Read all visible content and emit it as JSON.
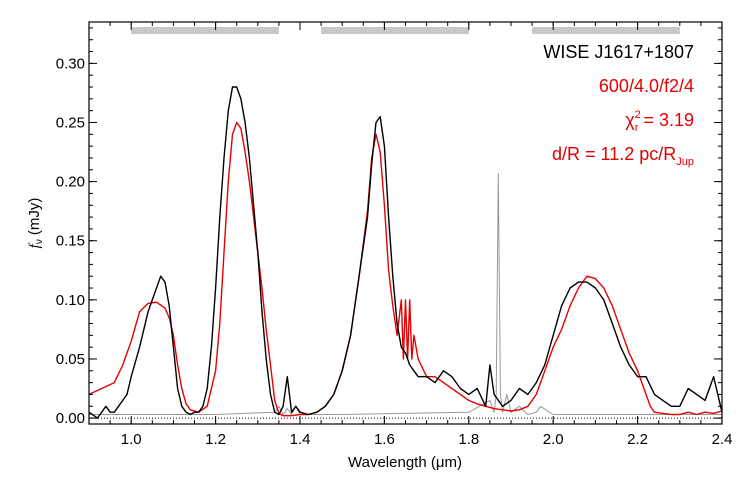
{
  "chart_data": {
    "type": "line",
    "xlabel_prefix": "Wavelength (",
    "xlabel_unit": "μm",
    "xlabel_suffix": ")",
    "ylabel_symbol": "f",
    "ylabel_sub": "ν",
    "ylabel_unit": "(mJy)",
    "xlim": [
      0.9,
      2.4
    ],
    "ylim": [
      -0.005,
      0.335
    ],
    "x_ticks": [
      "1.0",
      "1.2",
      "1.4",
      "1.6",
      "1.8",
      "2.0",
      "2.2",
      "2.4"
    ],
    "y_ticks": [
      "0.00",
      "0.05",
      "0.10",
      "0.15",
      "0.20",
      "0.25",
      "0.30"
    ],
    "annotations": {
      "object": "WISE J1617+1807",
      "model": "600/4.0/f2/4",
      "chi_symbol": "χ",
      "chi_sup": "2",
      "chi_sub": "r",
      "chi_value": " = 3.19",
      "dist_main": "d/R = 11.2 pc/R",
      "dist_sub": "Jup"
    },
    "colors": {
      "observed": "#000000",
      "model": "#e60000",
      "noise": "#999999",
      "bands": "#c8c8c8"
    },
    "band_bars": [
      [
        1.0,
        1.35
      ],
      [
        1.45,
        1.8
      ],
      [
        1.95,
        2.3
      ]
    ],
    "series": [
      {
        "role": "observed",
        "x": [
          0.9,
          0.92,
          0.94,
          0.95,
          0.96,
          0.97,
          0.98,
          0.99,
          1.0,
          1.02,
          1.04,
          1.06,
          1.07,
          1.08,
          1.09,
          1.1,
          1.11,
          1.12,
          1.13,
          1.14,
          1.15,
          1.16,
          1.17,
          1.18,
          1.19,
          1.2,
          1.21,
          1.22,
          1.23,
          1.24,
          1.25,
          1.26,
          1.27,
          1.28,
          1.29,
          1.3,
          1.31,
          1.32,
          1.33,
          1.34,
          1.35,
          1.36,
          1.37,
          1.38,
          1.39,
          1.4,
          1.42,
          1.44,
          1.46,
          1.48,
          1.5,
          1.52,
          1.54,
          1.56,
          1.57,
          1.58,
          1.59,
          1.6,
          1.61,
          1.62,
          1.63,
          1.64,
          1.65,
          1.66,
          1.67,
          1.68,
          1.7,
          1.72,
          1.74,
          1.76,
          1.78,
          1.8,
          1.82,
          1.84,
          1.85,
          1.86,
          1.88,
          1.9,
          1.92,
          1.94,
          1.96,
          1.98,
          2.0,
          2.02,
          2.04,
          2.06,
          2.08,
          2.1,
          2.12,
          2.14,
          2.16,
          2.18,
          2.2,
          2.22,
          2.24,
          2.26,
          2.28,
          2.3,
          2.32,
          2.34,
          2.36,
          2.38,
          2.4
        ],
        "y": [
          0.005,
          0.0,
          0.01,
          0.005,
          0.005,
          0.01,
          0.015,
          0.02,
          0.035,
          0.06,
          0.09,
          0.11,
          0.12,
          0.115,
          0.095,
          0.06,
          0.025,
          0.01,
          0.005,
          0.003,
          0.005,
          0.005,
          0.01,
          0.025,
          0.06,
          0.11,
          0.17,
          0.22,
          0.26,
          0.28,
          0.28,
          0.27,
          0.25,
          0.22,
          0.18,
          0.14,
          0.09,
          0.05,
          0.02,
          0.005,
          0.003,
          0.01,
          0.035,
          0.005,
          0.01,
          0.005,
          0.003,
          0.005,
          0.01,
          0.02,
          0.04,
          0.07,
          0.12,
          0.17,
          0.215,
          0.25,
          0.255,
          0.23,
          0.17,
          0.12,
          0.08,
          0.06,
          0.055,
          0.045,
          0.04,
          0.035,
          0.035,
          0.03,
          0.04,
          0.035,
          0.025,
          0.02,
          0.025,
          0.01,
          0.045,
          0.02,
          0.01,
          0.015,
          0.025,
          0.02,
          0.03,
          0.045,
          0.07,
          0.095,
          0.11,
          0.115,
          0.115,
          0.11,
          0.1,
          0.08,
          0.06,
          0.045,
          0.035,
          0.035,
          0.02,
          0.015,
          0.01,
          0.01,
          0.025,
          0.02,
          0.015,
          0.035,
          0.005
        ]
      },
      {
        "role": "model",
        "x": [
          0.9,
          0.93,
          0.96,
          0.98,
          1.0,
          1.02,
          1.04,
          1.06,
          1.08,
          1.09,
          1.1,
          1.11,
          1.12,
          1.13,
          1.14,
          1.16,
          1.18,
          1.2,
          1.21,
          1.22,
          1.23,
          1.24,
          1.25,
          1.26,
          1.27,
          1.28,
          1.29,
          1.3,
          1.31,
          1.32,
          1.33,
          1.34,
          1.35,
          1.36,
          1.38,
          1.4,
          1.42,
          1.44,
          1.46,
          1.48,
          1.5,
          1.52,
          1.54,
          1.56,
          1.57,
          1.58,
          1.59,
          1.6,
          1.61,
          1.62,
          1.63,
          1.64,
          1.645,
          1.65,
          1.655,
          1.66,
          1.665,
          1.67,
          1.68,
          1.7,
          1.72,
          1.74,
          1.76,
          1.78,
          1.8,
          1.82,
          1.84,
          1.86,
          1.88,
          1.9,
          1.92,
          1.94,
          1.96,
          1.98,
          2.0,
          2.02,
          2.04,
          2.06,
          2.08,
          2.1,
          2.12,
          2.14,
          2.16,
          2.18,
          2.2,
          2.21,
          2.22,
          2.23,
          2.24,
          2.26,
          2.28,
          2.3,
          2.32,
          2.34,
          2.36,
          2.38,
          2.4
        ],
        "y": [
          0.02,
          0.025,
          0.03,
          0.045,
          0.065,
          0.09,
          0.097,
          0.098,
          0.093,
          0.085,
          0.07,
          0.045,
          0.025,
          0.012,
          0.007,
          0.005,
          0.01,
          0.04,
          0.08,
          0.14,
          0.2,
          0.24,
          0.25,
          0.245,
          0.225,
          0.2,
          0.17,
          0.14,
          0.11,
          0.075,
          0.045,
          0.015,
          0.004,
          0.002,
          0.002,
          0.003,
          0.003,
          0.005,
          0.01,
          0.02,
          0.04,
          0.07,
          0.12,
          0.175,
          0.22,
          0.24,
          0.225,
          0.18,
          0.125,
          0.095,
          0.07,
          0.1,
          0.05,
          0.1,
          0.05,
          0.1,
          0.05,
          0.07,
          0.05,
          0.035,
          0.035,
          0.03,
          0.025,
          0.02,
          0.015,
          0.012,
          0.01,
          0.008,
          0.007,
          0.006,
          0.007,
          0.01,
          0.02,
          0.04,
          0.06,
          0.075,
          0.095,
          0.11,
          0.12,
          0.118,
          0.11,
          0.095,
          0.075,
          0.055,
          0.04,
          0.03,
          0.02,
          0.01,
          0.005,
          0.004,
          0.003,
          0.003,
          0.005,
          0.003,
          0.005,
          0.004,
          0.006
        ]
      },
      {
        "role": "noise",
        "x": [
          0.9,
          1.0,
          1.2,
          1.34,
          1.35,
          1.36,
          1.37,
          1.38,
          1.39,
          1.4,
          1.5,
          1.8,
          1.85,
          1.86,
          1.865,
          1.87,
          1.875,
          1.88,
          1.89,
          1.9,
          1.92,
          1.94,
          1.96,
          1.97,
          2.0,
          2.4
        ],
        "y": [
          0.003,
          0.003,
          0.003,
          0.005,
          0.01,
          0.003,
          0.008,
          0.003,
          0.01,
          0.003,
          0.003,
          0.005,
          0.015,
          0.005,
          0.02,
          0.207,
          0.02,
          0.005,
          0.02,
          0.005,
          0.01,
          0.003,
          0.005,
          0.01,
          0.003,
          0.003
        ]
      }
    ]
  }
}
